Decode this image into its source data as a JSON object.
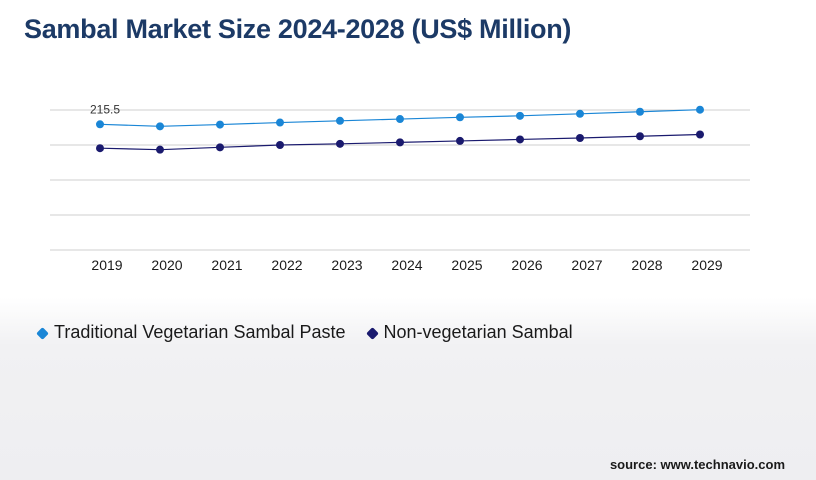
{
  "title": "Sambal Market Size 2024-2028 (US$ Million)",
  "source": "source: www.technavio.com",
  "colors": {
    "series1": "#1a86d6",
    "series2": "#1a1a6e",
    "grid": "#cfcfcf",
    "title": "#1c3a66"
  },
  "chart_data": {
    "type": "line",
    "title": "Sambal Market Size 2024-2028 (US$ Million)",
    "categories": [
      "2019",
      "2020",
      "2021",
      "2022",
      "2023",
      "2024",
      "2025",
      "2026",
      "2027",
      "2028",
      "2029"
    ],
    "ylim": [
      0,
      300
    ],
    "grid": true,
    "legend_position": "bottom-left",
    "annotations": [
      {
        "series": 0,
        "index": 0,
        "text": "215.5"
      }
    ],
    "series": [
      {
        "name": "Traditional Vegetarian Sambal Paste",
        "color": "#1a86d6",
        "values": [
          215.5,
          212,
          215,
          218.5,
          221.5,
          224.5,
          227.5,
          230,
          233.5,
          237,
          240.5
        ]
      },
      {
        "name": "Non-vegetarian Sambal",
        "color": "#1a1a6e",
        "values": [
          174.5,
          172,
          176,
          180,
          182,
          184.5,
          187,
          189.5,
          192,
          195,
          198
        ]
      }
    ]
  }
}
